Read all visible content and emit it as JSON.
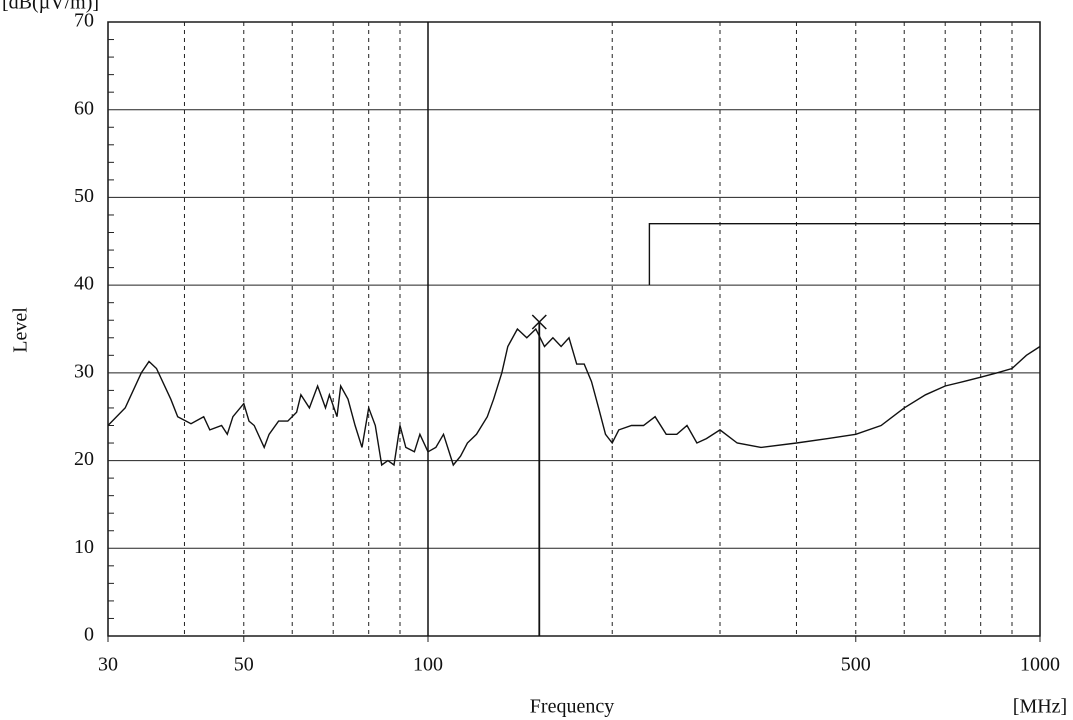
{
  "chart_data": {
    "type": "line",
    "y_unit": "[dB(µV/m)]",
    "ylabel": "Level",
    "xlabel": "Frequency",
    "x_unit": "[MHz]",
    "xscale": "log",
    "xlim": [
      30,
      1000
    ],
    "ylim": [
      0,
      70
    ],
    "xticks": [
      30,
      50,
      100,
      500,
      1000
    ],
    "yticks": [
      0,
      10,
      20,
      30,
      40,
      50,
      60,
      70
    ],
    "xgrid_dashed": [
      40,
      50,
      60,
      70,
      80,
      90,
      200,
      300,
      400,
      500,
      600,
      700,
      800,
      900
    ],
    "xgrid_solid": [
      100
    ],
    "grid": true,
    "series": [
      {
        "color": "#111111",
        "x": [
          30,
          32,
          34,
          35,
          36,
          38,
          39,
          41,
          43,
          44,
          46,
          47,
          48,
          50,
          51,
          52,
          54,
          55,
          57,
          59,
          61,
          62,
          64,
          66,
          68,
          69,
          71,
          72,
          74,
          76,
          78,
          80,
          82,
          84,
          86,
          88,
          90,
          92,
          95,
          97,
          100,
          103,
          106,
          110,
          113,
          116,
          120,
          125,
          128,
          132,
          135,
          140,
          145,
          150,
          155,
          160,
          165,
          170,
          175,
          180,
          185,
          190,
          195,
          200,
          205,
          215,
          225,
          235,
          245,
          255,
          265,
          275,
          285,
          300,
          320,
          350,
          400,
          450,
          500,
          550,
          600,
          650,
          700,
          750,
          800,
          850,
          900,
          950,
          1000
        ],
        "values": [
          24,
          26,
          30,
          31.3,
          30.5,
          27,
          25,
          24.2,
          25,
          23.5,
          24,
          23,
          25,
          26.5,
          24.5,
          24,
          21.5,
          23,
          24.5,
          24.5,
          25.5,
          27.5,
          26,
          28.5,
          26,
          27.5,
          25,
          28.5,
          27,
          24,
          21.5,
          26,
          24,
          19.5,
          20,
          19.5,
          24,
          21.5,
          21,
          23,
          21,
          21.5,
          23,
          19.5,
          20.5,
          22,
          23,
          25,
          27,
          30,
          33,
          35,
          34,
          35,
          33,
          34,
          33,
          34,
          31,
          31,
          29,
          26,
          23,
          22,
          23.5,
          24,
          24,
          25,
          23,
          23,
          24,
          22,
          22.5,
          23.5,
          22,
          21.5,
          22,
          22.5,
          23,
          24,
          26,
          27.5,
          28.5,
          29,
          29.5,
          30,
          30.5,
          32,
          33
        ]
      },
      {
        "color": "#111111",
        "x": [
          230,
          230,
          1000
        ],
        "values": [
          40,
          47,
          47
        ]
      }
    ],
    "markers": [
      {
        "x": 152,
        "value": 35.8
      }
    ]
  }
}
